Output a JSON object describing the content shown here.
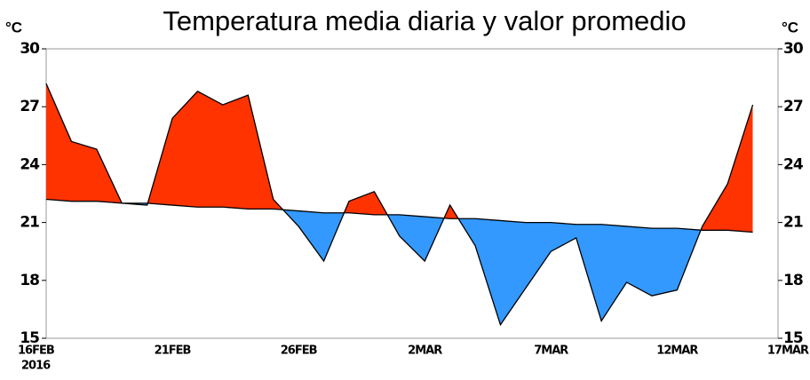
{
  "chart_data": {
    "type": "area-diff",
    "title": "Temperatura media diaria y valor promedio",
    "y_unit": "°C",
    "y2_unit": "°C",
    "year": "2016",
    "categories": [
      "16FEB",
      null,
      null,
      null,
      null,
      "21FEB",
      null,
      null,
      null,
      null,
      "26FEB",
      null,
      null,
      null,
      null,
      "2MAR",
      null,
      null,
      null,
      null,
      "7MAR",
      null,
      null,
      null,
      null,
      "12MAR",
      null,
      null,
      null,
      "17MAR"
    ],
    "series": [
      {
        "color": "#000000",
        "values": [
          28.2,
          25.2,
          24.8,
          22.0,
          21.9,
          26.4,
          27.8,
          27.1,
          27.6,
          22.2,
          20.8,
          19.0,
          22.1,
          22.6,
          20.3,
          19.0,
          21.9,
          19.8,
          15.7,
          17.6,
          19.5,
          20.2,
          15.9,
          17.9,
          17.2,
          17.5,
          20.8,
          23.0,
          27.1,
          null
        ]
      },
      {
        "color": "#000000",
        "values": [
          22.2,
          22.1,
          22.1,
          22.0,
          22.0,
          21.9,
          21.8,
          21.8,
          21.7,
          21.7,
          21.6,
          21.5,
          21.5,
          21.4,
          21.4,
          21.3,
          21.2,
          21.2,
          21.1,
          21.0,
          21.0,
          20.9,
          20.9,
          20.8,
          20.7,
          20.7,
          20.6,
          20.6,
          20.5,
          null
        ]
      }
    ],
    "above_color": "#ff3300",
    "below_color": "#3399ff",
    "ylim": [
      15,
      30
    ],
    "yticks": [
      15,
      18,
      21,
      24,
      27,
      30
    ],
    "y2lim": [
      15,
      30
    ],
    "y2ticks": [
      15,
      18,
      21,
      24,
      27,
      30
    ]
  }
}
